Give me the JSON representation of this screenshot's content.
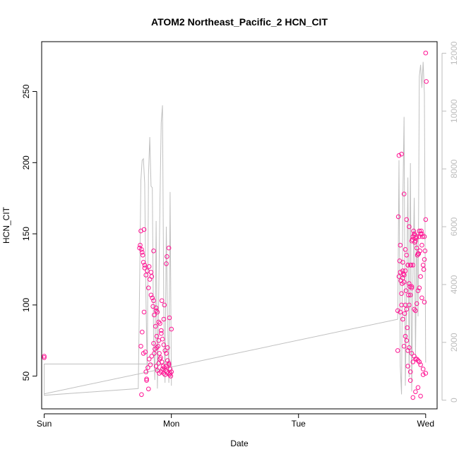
{
  "chart_data": {
    "type": "scatter",
    "title": "ATOM2 Northeast_Pacific_2 HCN_CIT",
    "xlabel": "Date",
    "ylabel": "HCN_CIT",
    "x_ticks": [
      "Sun",
      "Mon",
      "Tue",
      "Wed"
    ],
    "xlim": [
      -0.02,
      3.09
    ],
    "ylim_left": [
      27,
      285
    ],
    "y_ticks_left": [
      50,
      100,
      150,
      200,
      250
    ],
    "ylim_right": [
      -300,
      12400
    ],
    "y_ticks_right": [
      0,
      2000,
      4000,
      6000,
      8000,
      10000,
      12000
    ],
    "grid": false,
    "colors": {
      "points": "#ff1493",
      "line": "#c0c0c0",
      "frame": "#000000",
      "right_axis": "#bdbdbd"
    },
    "series": [
      {
        "axis": "left",
        "style": "points",
        "x_day_offset": [
          0.0,
          0.0,
          0.75,
          0.76,
          0.77,
          0.78,
          0.79,
          0.81,
          0.83,
          0.85,
          0.86,
          0.88,
          0.89,
          0.9,
          0.91,
          0.92,
          0.93,
          0.94,
          0.95,
          0.96,
          0.97,
          0.98,
          0.99,
          1.0,
          0.755,
          0.765,
          0.775,
          0.79,
          0.8,
          0.82,
          0.84,
          0.855,
          0.865,
          0.875,
          0.885,
          0.895,
          0.905,
          0.915,
          0.925,
          0.935,
          0.945,
          0.955,
          0.965,
          0.975,
          0.985,
          0.995,
          0.77,
          0.785,
          0.795,
          0.805,
          0.815,
          0.825,
          0.835,
          0.845,
          0.86,
          0.87,
          0.88,
          0.89,
          0.9,
          0.91,
          0.92,
          0.93,
          0.94,
          0.95,
          0.96,
          0.97,
          0.98,
          0.99,
          0.76,
          0.78,
          0.8,
          0.82,
          0.84,
          0.86,
          0.88,
          0.9,
          0.92,
          0.94,
          0.96,
          0.98,
          1.0,
          0.765,
          0.785,
          0.805,
          0.825,
          0.845,
          0.865,
          0.885,
          0.905,
          0.925,
          0.945,
          0.965,
          0.985,
          2.78,
          2.79,
          2.8,
          2.81,
          2.82,
          2.83,
          2.84,
          2.85,
          2.86,
          2.87,
          2.88,
          2.89,
          2.9,
          2.91,
          2.92,
          2.93,
          2.94,
          2.95,
          2.96,
          2.97,
          2.98,
          2.99,
          3.0,
          2.785,
          2.795,
          2.805,
          2.815,
          2.825,
          2.835,
          2.845,
          2.855,
          2.865,
          2.875,
          2.885,
          2.895,
          2.905,
          2.915,
          2.925,
          2.935,
          2.945,
          2.955,
          2.965,
          2.975,
          2.985,
          2.995,
          2.78,
          2.8,
          2.82,
          2.84,
          2.86,
          2.88,
          2.9,
          2.92,
          2.94,
          2.96,
          2.98,
          3.0,
          2.79,
          2.81,
          2.83,
          2.85,
          2.87,
          2.89,
          2.91,
          2.93,
          2.95,
          2.97,
          2.99,
          2.8,
          2.82,
          2.84,
          2.86,
          2.88,
          2.9,
          2.92,
          2.94,
          2.96,
          2.98,
          2.81,
          2.83,
          2.85,
          2.87,
          2.89,
          2.91,
          2.93,
          2.95,
          2.97,
          2.99,
          2.82,
          2.84,
          2.86,
          2.88,
          2.9,
          2.92,
          2.94,
          2.96,
          2.83,
          2.85,
          2.87,
          2.89,
          2.91,
          2.93,
          2.95,
          3.0,
          3.005
        ],
        "values": [
          63,
          64,
          140,
          152,
          137,
          130,
          126,
          124,
          118,
          105,
          103,
          98,
          95,
          88,
          87,
          80,
          76,
          72,
          68,
          66,
          61,
          58,
          55,
          53,
          142,
          139,
          135,
          128,
          121,
          112,
          107,
          99,
          93,
          85,
          78,
          71,
          66,
          63,
          60,
          57,
          56,
          54,
          53,
          52,
          51,
          50,
          81,
          95,
          67,
          47,
          56,
          62,
          58,
          64,
          73,
          69,
          57,
          54,
          59,
          62,
          53,
          55,
          52,
          51,
          57,
          70,
          59,
          52,
          71,
          66,
          53,
          41,
          123,
          138,
          96,
          75,
          82,
          90,
          129,
          140,
          83,
          37,
          153,
          48,
          127,
          120,
          66,
          70,
          52,
          103,
          100,
          134,
          91,
          68,
          120,
          123,
          100,
          90,
          116,
          124,
          135,
          128,
          115,
          107,
          112,
          148,
          150,
          145,
          140,
          136,
          148,
          150,
          142,
          128,
          132,
          160,
          162,
          131,
          117,
          115,
          122,
          94,
          110,
          84,
          107,
          113,
          128,
          146,
          152,
          144,
          147,
          135,
          136,
          138,
          152,
          148,
          125,
          138,
          96,
          95,
          124,
          78,
          68,
          53,
          60,
          62,
          61,
          58,
          51,
          52,
          205,
          206,
          178,
          160,
          155,
          145,
          149,
          148,
          152,
          150,
          148,
          142,
          119,
          100,
          57,
          47,
          35,
          39,
          42,
          36,
          55,
          108,
          121,
          97,
          100,
          113,
          97,
          101,
          112,
          105,
          102,
          130,
          139,
          128,
          128,
          128,
          96,
          110,
          120,
          71,
          75,
          70,
          66,
          64,
          62,
          60,
          277,
          257
        ]
      },
      {
        "axis": "right",
        "style": "line",
        "points": [
          [
            0.0,
            600
          ],
          [
            0.0,
            170
          ],
          [
            0.74,
            400
          ],
          [
            0.75,
            3800
          ],
          [
            0.76,
            7600
          ],
          [
            0.77,
            8300
          ],
          [
            0.78,
            8350
          ],
          [
            0.79,
            7500
          ],
          [
            0.8,
            3500
          ],
          [
            0.81,
            900
          ],
          [
            0.82,
            7800
          ],
          [
            0.83,
            9100
          ],
          [
            0.84,
            7400
          ],
          [
            0.85,
            7350
          ],
          [
            0.86,
            2000
          ],
          [
            0.87,
            700
          ],
          [
            0.88,
            6200
          ],
          [
            0.89,
            400
          ],
          [
            0.9,
            3500
          ],
          [
            0.91,
            6800
          ],
          [
            0.92,
            9600
          ],
          [
            0.93,
            10200
          ],
          [
            0.94,
            3200
          ],
          [
            0.95,
            600
          ],
          [
            0.96,
            6000
          ],
          [
            0.97,
            2800
          ],
          [
            0.98,
            600
          ],
          [
            0.99,
            7200
          ],
          [
            1.0,
            500
          ],
          [
            1.0,
            1250
          ],
          [
            0.0,
            1250
          ],
          [
            0.0,
            220
          ],
          [
            2.78,
            2800
          ],
          [
            2.79,
            8300
          ],
          [
            2.8,
            1200
          ],
          [
            2.81,
            200
          ],
          [
            2.82,
            6800
          ],
          [
            2.83,
            9800
          ],
          [
            2.84,
            500
          ],
          [
            2.85,
            3500
          ],
          [
            2.86,
            7700
          ],
          [
            2.87,
            800
          ],
          [
            2.88,
            8200
          ],
          [
            2.89,
            300
          ],
          [
            2.9,
            4200
          ],
          [
            2.91,
            7000
          ],
          [
            2.92,
            1500
          ],
          [
            2.93,
            5800
          ],
          [
            2.94,
            2900
          ],
          [
            2.95,
            11200
          ],
          [
            2.96,
            11600
          ],
          [
            2.97,
            10800
          ],
          [
            2.98,
            11700
          ],
          [
            2.99,
            10600
          ],
          [
            3.0,
            1300
          ]
        ]
      }
    ]
  }
}
